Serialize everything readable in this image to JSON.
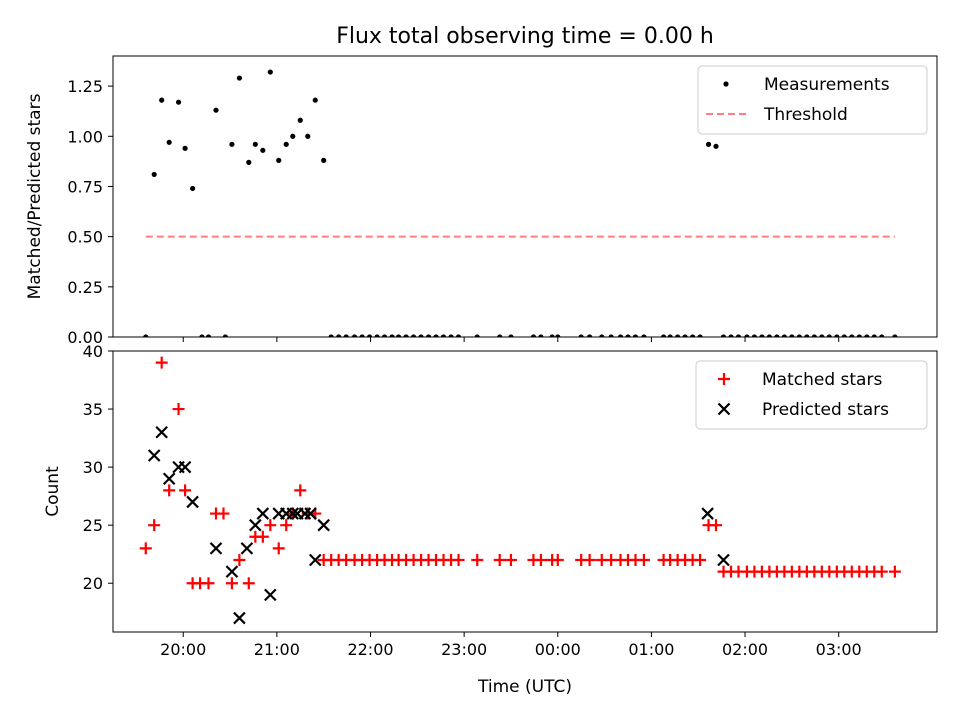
{
  "chart_data": [
    {
      "type": "scatter",
      "title": "Flux total observing time = 0.00 h",
      "xlabel": "",
      "ylabel": "Matched/Predicted stars",
      "x_ticks": [
        "20:00",
        "21:00",
        "22:00",
        "23:00",
        "00:00",
        "01:00",
        "02:00",
        "03:00"
      ],
      "x_tick_hours": [
        20,
        21,
        22,
        23,
        24,
        25,
        26,
        27
      ],
      "xlim": [
        19.25,
        28.05
      ],
      "ylim": [
        0,
        1.4
      ],
      "y_ticks": [
        0,
        0.25,
        0.5,
        0.75,
        1.0,
        1.25
      ],
      "y_tick_labels": [
        "0.00",
        "0.25",
        "0.50",
        "0.75",
        "1.00",
        "1.25"
      ],
      "legend_position": "top-right",
      "legend": [
        "Measurements",
        "Threshold"
      ],
      "series": [
        {
          "name": "Measurements",
          "marker": "dot",
          "color": "#000000",
          "x": [
            19.6,
            19.69,
            19.77,
            19.85,
            19.95,
            20.02,
            20.1,
            20.2,
            20.27,
            20.35,
            20.45,
            20.52,
            20.6,
            20.7,
            20.77,
            20.85,
            20.93,
            21.02,
            21.1,
            21.17,
            21.25,
            21.33,
            21.41,
            21.5,
            21.58,
            21.66,
            21.74,
            21.83,
            21.91,
            21.99,
            22.07,
            22.15,
            22.23,
            22.3,
            22.38,
            22.46,
            22.54,
            22.62,
            22.7,
            22.78,
            22.86,
            22.94,
            23.14,
            23.38,
            23.5,
            23.74,
            23.82,
            23.94,
            24.0,
            24.25,
            24.34,
            24.47,
            24.57,
            24.67,
            24.75,
            24.83,
            24.92,
            25.13,
            25.2,
            25.28,
            25.36,
            25.44,
            25.52,
            25.61,
            25.69,
            25.77,
            25.85,
            25.93,
            26.02,
            26.1,
            26.18,
            26.26,
            26.34,
            26.42,
            26.5,
            26.58,
            26.66,
            26.74,
            26.82,
            26.9,
            26.98,
            27.06,
            27.14,
            27.22,
            27.3,
            27.38,
            27.46,
            27.6
          ],
          "y": [
            0,
            0.81,
            1.18,
            0.97,
            1.17,
            0.94,
            0.74,
            0,
            0,
            1.13,
            0,
            0.96,
            1.29,
            0.87,
            0.96,
            0.93,
            1.32,
            0.88,
            0.96,
            1.0,
            1.08,
            1.0,
            1.18,
            0.88,
            0,
            0,
            0,
            0,
            0,
            0,
            0,
            0,
            0,
            0,
            0,
            0,
            0,
            0,
            0,
            0,
            0,
            0,
            0,
            0,
            0,
            0,
            0,
            0,
            0,
            0,
            0,
            0,
            0,
            0,
            0,
            0,
            0,
            0,
            0,
            0,
            0,
            0,
            0,
            0.96,
            0.95,
            0,
            0,
            0,
            0,
            0,
            0,
            0,
            0,
            0,
            0,
            0,
            0,
            0,
            0,
            0,
            0,
            0,
            0,
            0,
            0,
            0,
            0,
            0
          ]
        },
        {
          "name": "Threshold",
          "type": "line",
          "style": "dashed",
          "color": "#ff7f7f",
          "x": [
            19.6,
            27.6
          ],
          "y": [
            0.5,
            0.5
          ]
        }
      ]
    },
    {
      "type": "scatter",
      "title": "",
      "xlabel": "Time (UTC)",
      "ylabel": "Count",
      "x_ticks": [
        "20:00",
        "21:00",
        "22:00",
        "23:00",
        "00:00",
        "01:00",
        "02:00",
        "03:00"
      ],
      "x_tick_hours": [
        20,
        21,
        22,
        23,
        24,
        25,
        26,
        27
      ],
      "xlim": [
        19.25,
        28.05
      ],
      "ylim": [
        15.8,
        40.0
      ],
      "y_ticks": [
        20,
        25,
        30,
        35,
        40
      ],
      "y_tick_labels": [
        "20",
        "25",
        "30",
        "35",
        "40"
      ],
      "legend_position": "top-right",
      "legend": [
        "Matched stars",
        "Predicted stars"
      ],
      "series": [
        {
          "name": "Matched stars",
          "marker": "plus",
          "color": "#ff0000",
          "x": [
            19.6,
            19.69,
            19.77,
            19.85,
            19.95,
            20.02,
            20.1,
            20.18,
            20.27,
            20.35,
            20.43,
            20.52,
            20.6,
            20.7,
            20.77,
            20.85,
            20.93,
            21.02,
            21.1,
            21.17,
            21.25,
            21.33,
            21.41,
            21.5,
            21.58,
            21.66,
            21.74,
            21.83,
            21.91,
            21.99,
            22.07,
            22.15,
            22.23,
            22.3,
            22.38,
            22.46,
            22.54,
            22.62,
            22.7,
            22.78,
            22.86,
            22.94,
            23.14,
            23.38,
            23.5,
            23.74,
            23.82,
            23.94,
            24.0,
            24.25,
            24.34,
            24.47,
            24.57,
            24.67,
            24.75,
            24.83,
            24.92,
            25.13,
            25.2,
            25.28,
            25.36,
            25.44,
            25.52,
            25.61,
            25.69,
            25.77,
            25.85,
            25.93,
            26.02,
            26.1,
            26.18,
            26.26,
            26.34,
            26.42,
            26.5,
            26.58,
            26.66,
            26.74,
            26.82,
            26.9,
            26.98,
            27.06,
            27.14,
            27.22,
            27.3,
            27.38,
            27.46,
            27.6
          ],
          "y": [
            23,
            25,
            39,
            28,
            35,
            28,
            20,
            20,
            20,
            26,
            26,
            20,
            22,
            20,
            24,
            24,
            25,
            23,
            25,
            26,
            28,
            26,
            26,
            22,
            22,
            22,
            22,
            22,
            22,
            22,
            22,
            22,
            22,
            22,
            22,
            22,
            22,
            22,
            22,
            22,
            22,
            22,
            22,
            22,
            22,
            22,
            22,
            22,
            22,
            22,
            22,
            22,
            22,
            22,
            22,
            22,
            22,
            22,
            22,
            22,
            22,
            22,
            22,
            25,
            25,
            21,
            21,
            21,
            21,
            21,
            21,
            21,
            21,
            21,
            21,
            21,
            21,
            21,
            21,
            21,
            21,
            21,
            21,
            21,
            21,
            21,
            21,
            21
          ]
        },
        {
          "name": "Predicted stars",
          "marker": "x",
          "color": "#000000",
          "x": [
            19.69,
            19.77,
            19.85,
            19.95,
            20.02,
            20.1,
            20.35,
            20.52,
            20.6,
            20.68,
            20.77,
            20.85,
            20.93,
            21.02,
            21.1,
            21.17,
            21.22,
            21.3,
            21.36,
            21.41,
            21.5,
            25.6,
            25.77
          ],
          "y": [
            31,
            33,
            29,
            30,
            30,
            27,
            23,
            21,
            17,
            23,
            25,
            26,
            19,
            26,
            26,
            26,
            26,
            26,
            26,
            22,
            25,
            26,
            22
          ]
        }
      ]
    }
  ]
}
